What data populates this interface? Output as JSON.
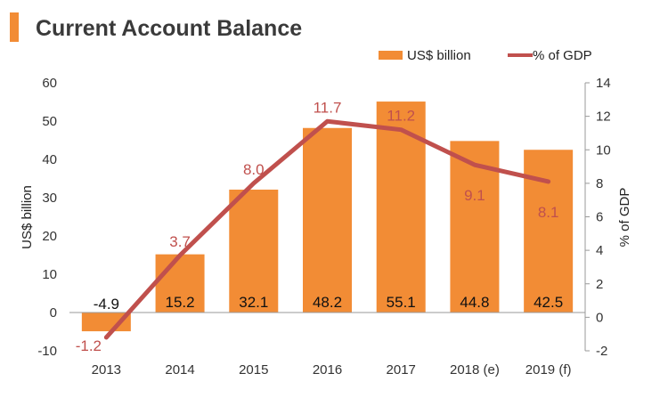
{
  "chart_data": {
    "type": "bar",
    "title": "Current Account Balance",
    "categories": [
      "2013",
      "2014",
      "2015",
      "2016",
      "2017",
      "2018 (e)",
      "2019 (f)"
    ],
    "series": [
      {
        "name": "US$ billion",
        "type": "bar",
        "axis": "left",
        "color": "#F28C35",
        "values": [
          -4.9,
          15.2,
          32.1,
          48.2,
          55.1,
          44.8,
          42.5
        ],
        "labels": [
          "-4.9",
          "15.2",
          "32.1",
          "48.2",
          "55.1",
          "44.8",
          "42.5"
        ]
      },
      {
        "name": "% of GDP",
        "type": "line",
        "axis": "right",
        "color": "#C0504D",
        "values": [
          -1.2,
          3.7,
          8.0,
          11.7,
          11.2,
          9.1,
          8.1
        ],
        "labels": [
          "-1.2",
          "3.7",
          "8.0",
          "11.7",
          "11.2",
          "9.1",
          "8.1"
        ]
      }
    ],
    "ylabel": "US$ billion",
    "y2label": "% of GDP",
    "ylim": [
      -10,
      60
    ],
    "y2lim": [
      -2,
      14
    ],
    "yticks": [
      "-10",
      "0",
      "10",
      "20",
      "30",
      "40",
      "50",
      "60"
    ],
    "y2ticks": [
      "-2",
      "0",
      "2",
      "4",
      "6",
      "8",
      "10",
      "12",
      "14"
    ],
    "legend": "top-right",
    "grid": false,
    "accent_color": "#F28C35",
    "title_color": "#3A3A3A"
  }
}
